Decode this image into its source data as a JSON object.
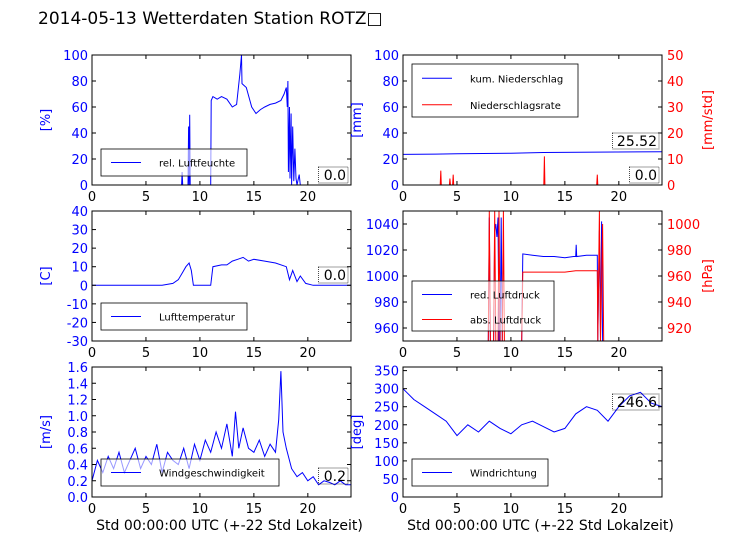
{
  "title": "2014-05-13 Wetterdaten Station ROTZ□",
  "colors": {
    "primary": "#0000ff",
    "secondary": "#ff0000",
    "axis": "#000000"
  },
  "chart_data": [
    {
      "id": "humidity",
      "type": "line",
      "xlim": [
        0,
        24
      ],
      "ylim": [
        0,
        100
      ],
      "xticks": [
        0,
        5,
        10,
        15,
        20
      ],
      "yticks": [
        0,
        20,
        40,
        60,
        80,
        100
      ],
      "ylabel": "[%]",
      "xlabel": "",
      "grid": false,
      "legend_position": "lower-left",
      "value_label": "0.0",
      "series": [
        {
          "name": "rel. Luftfeuchte",
          "color": "#0000ff",
          "axis": "left",
          "points": [
            [
              0,
              0
            ],
            [
              8.3,
              0
            ],
            [
              8.35,
              10
            ],
            [
              8.4,
              0
            ],
            [
              8.9,
              0
            ],
            [
              8.95,
              45
            ],
            [
              9.0,
              0
            ],
            [
              9.05,
              54
            ],
            [
              9.1,
              0
            ],
            [
              11.0,
              0
            ],
            [
              11.05,
              65
            ],
            [
              11.2,
              68
            ],
            [
              11.6,
              66
            ],
            [
              12.0,
              68
            ],
            [
              12.5,
              66
            ],
            [
              13.0,
              60
            ],
            [
              13.4,
              62
            ],
            [
              13.7,
              85
            ],
            [
              13.85,
              100
            ],
            [
              13.9,
              78
            ],
            [
              14.3,
              75
            ],
            [
              14.8,
              60
            ],
            [
              15.2,
              55
            ],
            [
              15.6,
              58
            ],
            [
              16.0,
              60
            ],
            [
              16.5,
              62
            ],
            [
              17.0,
              63
            ],
            [
              17.5,
              65
            ],
            [
              17.8,
              70
            ],
            [
              18.0,
              75
            ],
            [
              18.1,
              60
            ],
            [
              18.15,
              80
            ],
            [
              18.2,
              10
            ],
            [
              18.3,
              60
            ],
            [
              18.35,
              5
            ],
            [
              18.45,
              55
            ],
            [
              18.5,
              0
            ],
            [
              18.6,
              45
            ],
            [
              18.7,
              3
            ],
            [
              18.8,
              28
            ],
            [
              18.9,
              5
            ],
            [
              19.0,
              0
            ],
            [
              19.2,
              8
            ],
            [
              19.3,
              0
            ],
            [
              24,
              0
            ]
          ]
        }
      ]
    },
    {
      "id": "precipitation",
      "type": "line",
      "xlim": [
        0,
        24
      ],
      "ylim": [
        0,
        100
      ],
      "ylim_right": [
        0,
        50
      ],
      "xticks": [
        0,
        5,
        10,
        15,
        20
      ],
      "yticks": [
        0,
        20,
        40,
        60,
        80,
        100
      ],
      "yticks_right": [
        0,
        10,
        20,
        30,
        40,
        50
      ],
      "ylabel": "[mm]",
      "ylabel_right": "[mm/std]",
      "xlabel": "",
      "grid": false,
      "legend_position": "upper-left",
      "value_labels": [
        "25.52",
        "0.0"
      ],
      "series": [
        {
          "name": "kum. Niederschlag",
          "color": "#0000ff",
          "axis": "left",
          "points": [
            [
              0,
              23.5
            ],
            [
              3,
              23.8
            ],
            [
              5,
              24.0
            ],
            [
              10,
              24.5
            ],
            [
              13,
              25.0
            ],
            [
              18,
              25.3
            ],
            [
              24,
              25.52
            ]
          ]
        },
        {
          "name": "Niederschlagsrate",
          "color": "#ff0000",
          "axis": "right",
          "points": [
            [
              0,
              0
            ],
            [
              3.45,
              0
            ],
            [
              3.5,
              5.5
            ],
            [
              3.55,
              0
            ],
            [
              4.3,
              0
            ],
            [
              4.35,
              2.5
            ],
            [
              4.4,
              0
            ],
            [
              4.6,
              0
            ],
            [
              4.65,
              4
            ],
            [
              4.7,
              0
            ],
            [
              13.05,
              0
            ],
            [
              13.1,
              11
            ],
            [
              13.15,
              0
            ],
            [
              17.95,
              0
            ],
            [
              18.0,
              4
            ],
            [
              18.05,
              0
            ],
            [
              24,
              0
            ]
          ]
        }
      ]
    },
    {
      "id": "temperature",
      "type": "line",
      "xlim": [
        0,
        24
      ],
      "ylim": [
        -30,
        40
      ],
      "xticks": [
        0,
        5,
        10,
        15,
        20
      ],
      "yticks": [
        -30,
        -20,
        -10,
        0,
        10,
        20,
        30,
        40
      ],
      "ylabel": "[C]",
      "xlabel": "",
      "grid": false,
      "legend_position": "lower-left",
      "value_label": "0.0",
      "series": [
        {
          "name": "Lufttemperatur",
          "color": "#0000ff",
          "axis": "left",
          "points": [
            [
              0,
              0
            ],
            [
              6.5,
              0
            ],
            [
              7.5,
              1
            ],
            [
              8.0,
              3
            ],
            [
              8.4,
              7
            ],
            [
              8.7,
              10
            ],
            [
              9.0,
              12
            ],
            [
              9.2,
              8
            ],
            [
              9.4,
              0
            ],
            [
              11.0,
              0
            ],
            [
              11.2,
              10
            ],
            [
              12.0,
              11
            ],
            [
              12.5,
              11
            ],
            [
              13.0,
              13
            ],
            [
              13.5,
              14
            ],
            [
              14.0,
              15
            ],
            [
              14.5,
              13
            ],
            [
              15.0,
              14
            ],
            [
              16.0,
              13
            ],
            [
              17.0,
              12
            ],
            [
              18.0,
              10
            ],
            [
              18.3,
              3
            ],
            [
              18.6,
              8
            ],
            [
              19.0,
              2
            ],
            [
              19.3,
              5
            ],
            [
              19.8,
              1
            ],
            [
              20.5,
              0
            ],
            [
              24,
              0
            ]
          ]
        }
      ]
    },
    {
      "id": "pressure",
      "type": "line",
      "xlim": [
        0,
        24
      ],
      "ylim": [
        950,
        1050
      ],
      "ylim_right": [
        910,
        1010
      ],
      "xticks": [
        0,
        5,
        10,
        15,
        20
      ],
      "yticks": [
        960,
        980,
        1000,
        1020,
        1040
      ],
      "yticks_right": [
        920,
        940,
        960,
        980,
        1000
      ],
      "ylabel": "",
      "ylabel_right": "[hPa]",
      "xlabel": "",
      "grid": false,
      "legend_position": "lower-left",
      "series": [
        {
          "name": "red. Luftdruck",
          "color": "#0000ff",
          "axis": "left",
          "points": [
            [
              7.9,
              950
            ],
            [
              8.0,
              1045
            ],
            [
              8.1,
              950
            ],
            [
              8.4,
              950
            ],
            [
              8.5,
              1035
            ],
            [
              8.6,
              1040
            ],
            [
              8.7,
              1030
            ],
            [
              8.8,
              1045
            ],
            [
              8.9,
              950
            ],
            [
              9.0,
              950
            ],
            [
              9.1,
              1045
            ],
            [
              9.2,
              950
            ],
            [
              11.0,
              950
            ],
            [
              11.1,
              1017
            ],
            [
              12.0,
              1016
            ],
            [
              13.0,
              1015
            ],
            [
              14.0,
              1015
            ],
            [
              15.0,
              1014
            ],
            [
              15.8,
              1015
            ],
            [
              16.0,
              1015
            ],
            [
              16.05,
              1024
            ],
            [
              16.1,
              1015
            ],
            [
              17.0,
              1016
            ],
            [
              18.0,
              1016
            ],
            [
              18.05,
              950
            ],
            [
              18.2,
              1035
            ],
            [
              18.3,
              950
            ],
            [
              18.4,
              1042
            ],
            [
              18.5,
              950
            ]
          ]
        },
        {
          "name": "abs. Luftdruck",
          "color": "#ff0000",
          "axis": "right",
          "points": [
            [
              0,
              910
            ],
            [
              7.9,
              910
            ],
            [
              8.0,
              1010
            ],
            [
              8.1,
              910
            ],
            [
              8.4,
              910
            ],
            [
              8.5,
              1010
            ],
            [
              8.6,
              910
            ],
            [
              8.8,
              910
            ],
            [
              8.9,
              1010
            ],
            [
              9.0,
              910
            ],
            [
              9.2,
              910
            ],
            [
              9.3,
              1010
            ],
            [
              9.4,
              910
            ],
            [
              11.0,
              910
            ],
            [
              11.1,
              963
            ],
            [
              13.0,
              963
            ],
            [
              15.0,
              963
            ],
            [
              16.0,
              964
            ],
            [
              17.0,
              964
            ],
            [
              18.0,
              964
            ],
            [
              18.05,
              910
            ],
            [
              18.2,
              1010
            ],
            [
              18.3,
              910
            ],
            [
              18.5,
              1000
            ],
            [
              18.6,
              910
            ]
          ]
        }
      ]
    },
    {
      "id": "windspeed",
      "type": "line",
      "xlim": [
        0,
        24
      ],
      "ylim": [
        0,
        1.6
      ],
      "xticks": [
        0,
        5,
        10,
        15,
        20
      ],
      "yticks": [
        0.0,
        0.2,
        0.4,
        0.6,
        0.8,
        1.0,
        1.2,
        1.4,
        1.6
      ],
      "ylabel": "[m/s]",
      "xlabel": "Std 00:00:00 UTC (+-22 Std Lokalzeit)",
      "grid": false,
      "legend_position": "lower-left",
      "value_label": "0.2",
      "series": [
        {
          "name": "Windgeschwindigkeit",
          "color": "#0000ff",
          "axis": "left",
          "points": [
            [
              0,
              0.2
            ],
            [
              0.5,
              0.45
            ],
            [
              1,
              0.3
            ],
            [
              1.5,
              0.5
            ],
            [
              2,
              0.35
            ],
            [
              2.5,
              0.55
            ],
            [
              3,
              0.3
            ],
            [
              3.5,
              0.45
            ],
            [
              4,
              0.6
            ],
            [
              4.5,
              0.35
            ],
            [
              5,
              0.5
            ],
            [
              5.5,
              0.4
            ],
            [
              6,
              0.65
            ],
            [
              6.5,
              0.3
            ],
            [
              7,
              0.55
            ],
            [
              7.5,
              0.45
            ],
            [
              8,
              0.4
            ],
            [
              8.5,
              0.6
            ],
            [
              9,
              0.35
            ],
            [
              9.5,
              0.65
            ],
            [
              10,
              0.45
            ],
            [
              10.5,
              0.7
            ],
            [
              11,
              0.55
            ],
            [
              11.5,
              0.8
            ],
            [
              12,
              0.6
            ],
            [
              12.5,
              0.9
            ],
            [
              13,
              0.5
            ],
            [
              13.3,
              1.05
            ],
            [
              13.6,
              0.6
            ],
            [
              14,
              0.85
            ],
            [
              14.5,
              0.6
            ],
            [
              15,
              0.55
            ],
            [
              15.5,
              0.7
            ],
            [
              16,
              0.5
            ],
            [
              16.5,
              0.65
            ],
            [
              17,
              0.55
            ],
            [
              17.3,
              0.95
            ],
            [
              17.5,
              1.55
            ],
            [
              17.7,
              0.8
            ],
            [
              18,
              0.6
            ],
            [
              18.5,
              0.35
            ],
            [
              19,
              0.25
            ],
            [
              19.5,
              0.3
            ],
            [
              20,
              0.2
            ],
            [
              20.5,
              0.25
            ],
            [
              21,
              0.15
            ],
            [
              21.5,
              0.2
            ],
            [
              22,
              0.18
            ],
            [
              22.5,
              0.15
            ],
            [
              23,
              0.2
            ],
            [
              23.5,
              0.15
            ],
            [
              24,
              0.15
            ]
          ]
        }
      ]
    },
    {
      "id": "winddirection",
      "type": "line",
      "xlim": [
        0,
        24
      ],
      "ylim": [
        0,
        360
      ],
      "xticks": [
        0,
        5,
        10,
        15,
        20
      ],
      "yticks": [
        0,
        50,
        100,
        150,
        200,
        250,
        300,
        350
      ],
      "ylabel": "[deg]",
      "xlabel": "Std 00:00:00 UTC (+-22 Std Lokalzeit)",
      "grid": false,
      "legend_position": "lower-left",
      "value_label": "246.6",
      "series": [
        {
          "name": "Windrichtung",
          "color": "#0000ff",
          "axis": "left",
          "points": [
            [
              0,
              300
            ],
            [
              1,
              270
            ],
            [
              2,
              250
            ],
            [
              3,
              230
            ],
            [
              4,
              210
            ],
            [
              5,
              170
            ],
            [
              6,
              200
            ],
            [
              7,
              180
            ],
            [
              8,
              210
            ],
            [
              9,
              190
            ],
            [
              10,
              175
            ],
            [
              11,
              200
            ],
            [
              12,
              210
            ],
            [
              13,
              195
            ],
            [
              14,
              180
            ],
            [
              15,
              190
            ],
            [
              16,
              230
            ],
            [
              17,
              250
            ],
            [
              18,
              240
            ],
            [
              19,
              210
            ],
            [
              20,
              250
            ],
            [
              21,
              280
            ],
            [
              22,
              290
            ],
            [
              23,
              260
            ],
            [
              24,
              250
            ]
          ]
        }
      ]
    }
  ]
}
